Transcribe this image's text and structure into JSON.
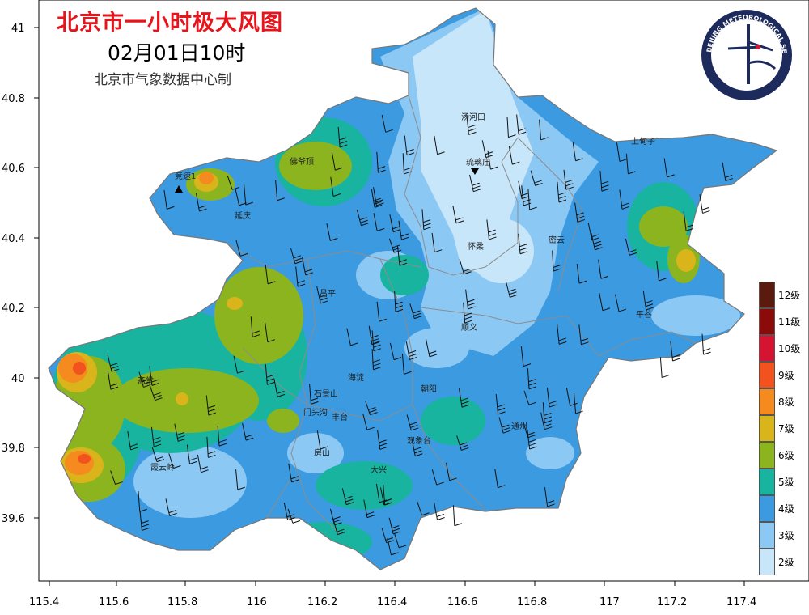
{
  "header": {
    "title": "北京市一小时极大风图",
    "time": "02月01日10时",
    "producer": "北京市气象数据中心制"
  },
  "logo": {
    "ring_text_top": "BEIJING METEOROLOGICAL SERVICE",
    "ring_text_bottom": "北京市气象局"
  },
  "axes": {
    "x_ticks": [
      "115.4",
      "115.6",
      "115.8",
      "116",
      "116.2",
      "116.4",
      "116.6",
      "116.8",
      "117",
      "117.2",
      "117.4"
    ],
    "y_ticks": [
      "41",
      "40.8",
      "40.6",
      "40.4",
      "40.2",
      "40",
      "39.8",
      "39.6"
    ]
  },
  "legend": {
    "items": [
      {
        "label": "12级",
        "color": "#5a1a0e"
      },
      {
        "label": "11级",
        "color": "#8b0a0a"
      },
      {
        "label": "10级",
        "color": "#d41430"
      },
      {
        "label": "9级",
        "color": "#f2521e"
      },
      {
        "label": "8级",
        "color": "#f58a1e"
      },
      {
        "label": "7级",
        "color": "#d9b41a"
      },
      {
        "label": "6级",
        "color": "#8cb41e"
      },
      {
        "label": "5级",
        "color": "#18b4a0"
      },
      {
        "label": "4级",
        "color": "#3c9ae0"
      },
      {
        "label": "3级",
        "color": "#8cc8f4"
      },
      {
        "label": "2级",
        "color": "#c8e6fa"
      }
    ]
  },
  "stations": [
    {
      "name": "汤河口"
    },
    {
      "name": "琉璃庙"
    },
    {
      "name": "上甸子"
    },
    {
      "name": "佛爷顶"
    },
    {
      "name": "竞速1"
    },
    {
      "name": "延庆"
    },
    {
      "name": "密云"
    },
    {
      "name": "怀柔"
    },
    {
      "name": "昌平"
    },
    {
      "name": "顺义"
    },
    {
      "name": "平谷"
    },
    {
      "name": "海淀"
    },
    {
      "name": "朝阳"
    },
    {
      "name": "石景山"
    },
    {
      "name": "门头沟"
    },
    {
      "name": "丰台"
    },
    {
      "name": "斋堂"
    },
    {
      "name": "通州"
    },
    {
      "name": "观象台"
    },
    {
      "name": "房山"
    },
    {
      "name": "霞云岭"
    },
    {
      "name": "大兴"
    }
  ]
}
